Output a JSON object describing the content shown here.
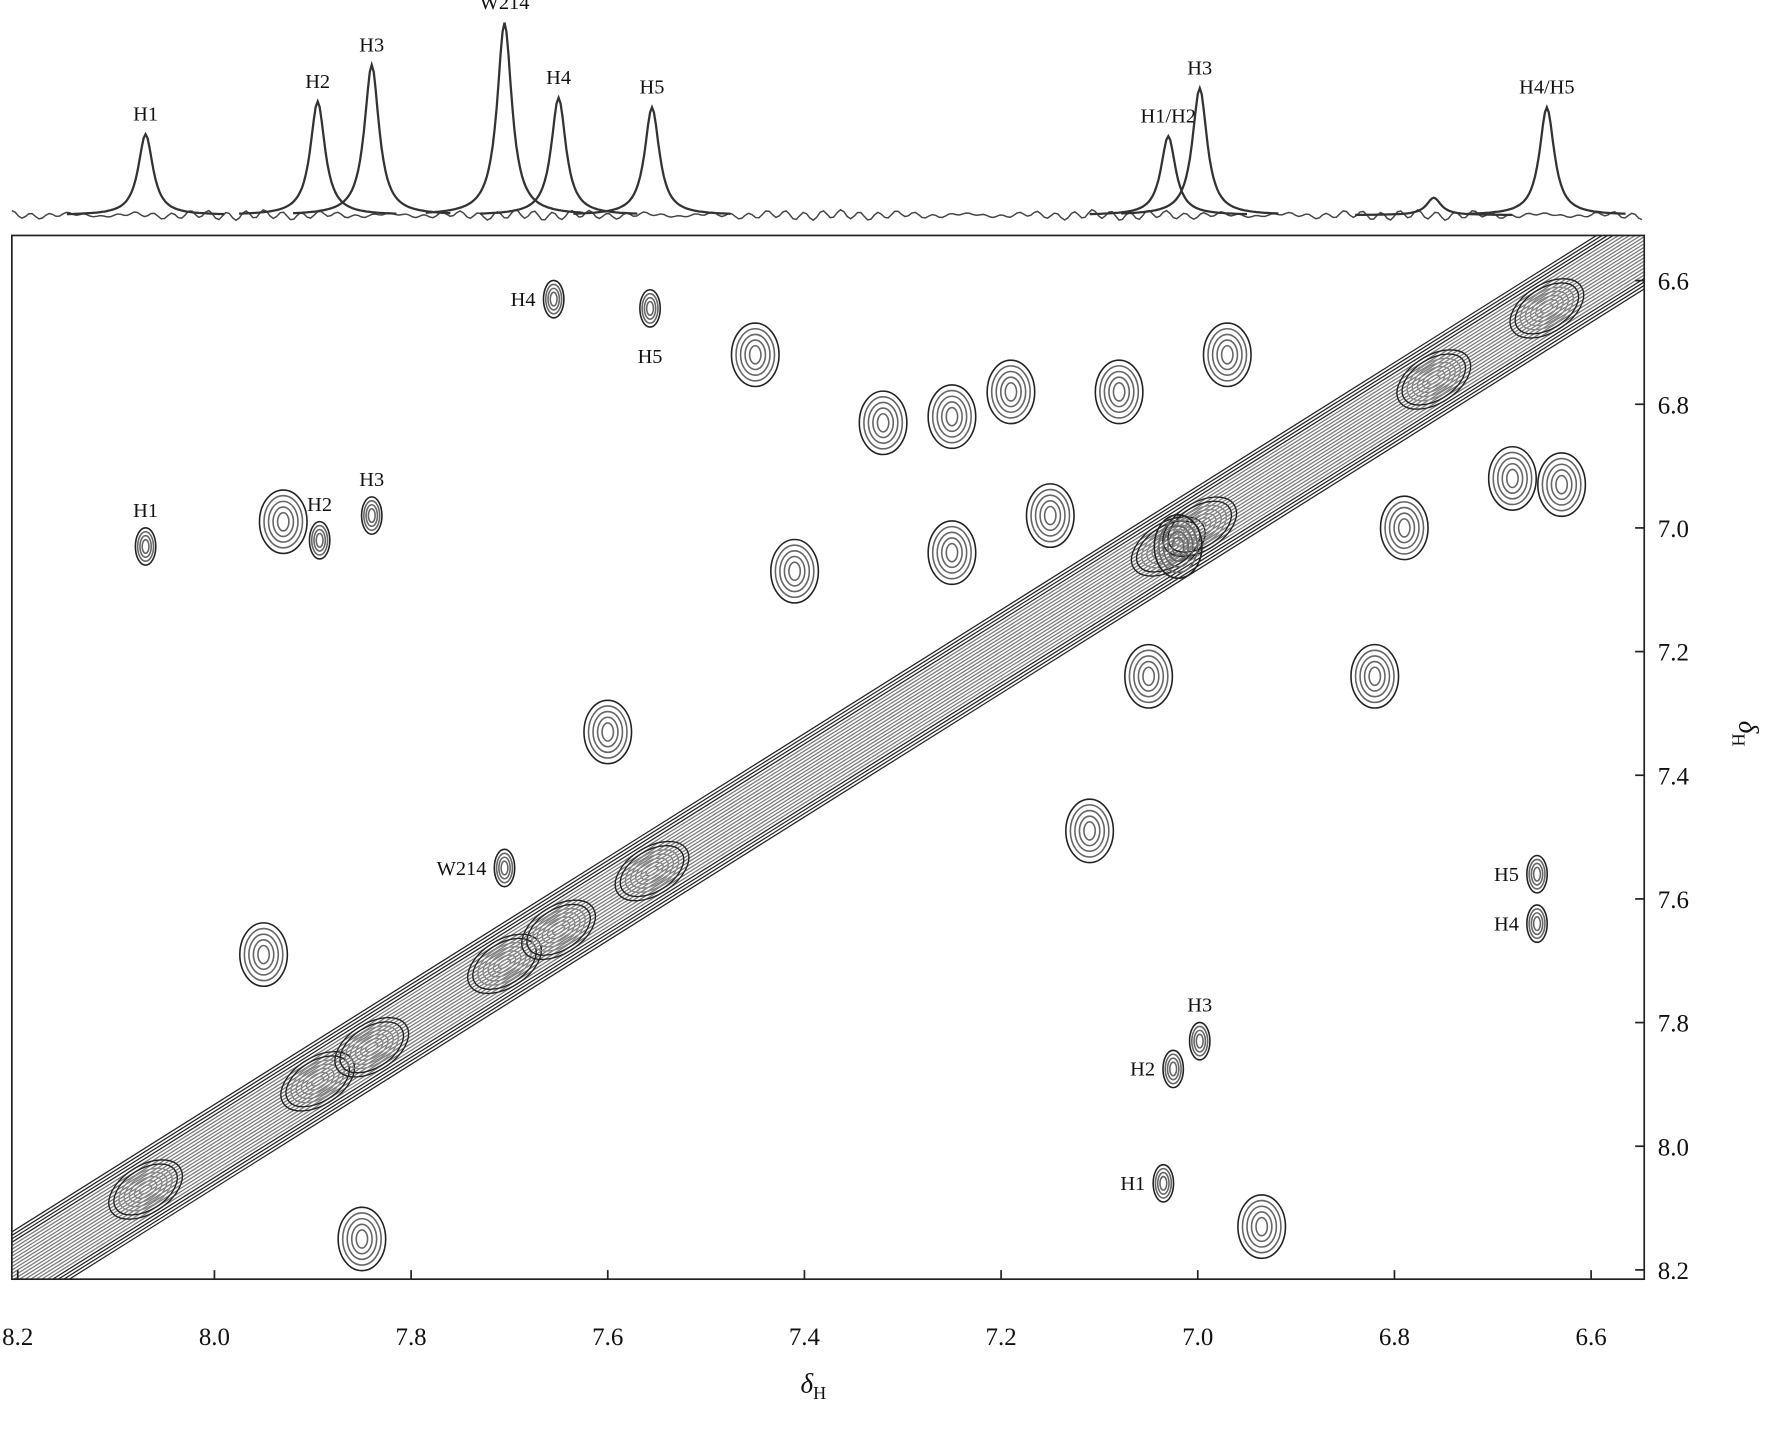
{
  "chart_data": {
    "type": "nmr2d",
    "xlabel": {
      "symbol": "δ",
      "subscript": "H"
    },
    "ylabel": {
      "symbol": "δ",
      "subscript": "H"
    },
    "xlim": [
      8.206,
      6.546
    ],
    "ylim": [
      6.527,
      8.215
    ],
    "xticks": [
      8.2,
      {
        "value": 8,
        "label": "8.0"
      },
      7.8,
      7.6,
      7.4,
      7.2,
      {
        "value": 7,
        "label": "7.0"
      },
      6.8,
      6.6
    ],
    "yticks": [
      6.6,
      6.8,
      {
        "value": 7,
        "label": "7.0"
      },
      7.2,
      7.4,
      7.6,
      7.8,
      {
        "value": 8,
        "label": "8.0"
      },
      8.2
    ],
    "spectrum": {
      "positions": [
        8.07,
        7.895,
        7.84,
        7.705,
        7.65,
        7.555,
        7.03,
        6.998,
        6.645,
        6.76
      ],
      "intensities": [
        42,
        59,
        78,
        100,
        61,
        56,
        41,
        66,
        56,
        9
      ],
      "labels": [
        "H1",
        "H2",
        "H3",
        "W214",
        "H4",
        "H5",
        "H1/H2",
        "H3",
        "H4/H5",
        null
      ]
    },
    "cross_peaks": {
      "x": [
        7.655,
        7.557,
        8.07,
        7.893,
        7.84,
        7.705,
        6.655,
        6.655,
        6.998,
        7.025,
        7.035,
        7.25,
        7.19,
        7.08,
        6.97,
        7.25,
        7.05,
        6.82,
        6.68,
        6.63,
        6.79,
        7.6,
        7.11,
        7.95,
        7.93,
        7.45,
        6.935,
        7.85,
        7.32,
        7.41,
        7.02,
        7.15
      ],
      "y": [
        6.63,
        6.645,
        7.03,
        7.02,
        6.98,
        7.55,
        7.56,
        7.64,
        7.83,
        7.875,
        8.06,
        6.82,
        6.78,
        6.78,
        6.72,
        7.04,
        7.24,
        7.24,
        6.92,
        6.93,
        7.0,
        7.33,
        7.49,
        7.69,
        6.99,
        6.72,
        8.13,
        8.15,
        6.83,
        7.07,
        7.03,
        6.98
      ],
      "labels": [
        "H4",
        "H5",
        "H1",
        "H2",
        "H3",
        "W214",
        "H5",
        "H4",
        "H3",
        "H2",
        "H1",
        null,
        null,
        null,
        null,
        null,
        null,
        null,
        null,
        null,
        null,
        null,
        null,
        null,
        null,
        null,
        null,
        null,
        null,
        null,
        null,
        null
      ],
      "label_side": [
        "left",
        "below",
        "above",
        "above",
        "above",
        "left",
        "left",
        "left",
        "above",
        "left",
        "left",
        null,
        null,
        null,
        null,
        null,
        null,
        null,
        null,
        null,
        null,
        null,
        null,
        null,
        null,
        null,
        null,
        null,
        null,
        null,
        null,
        null
      ]
    }
  }
}
